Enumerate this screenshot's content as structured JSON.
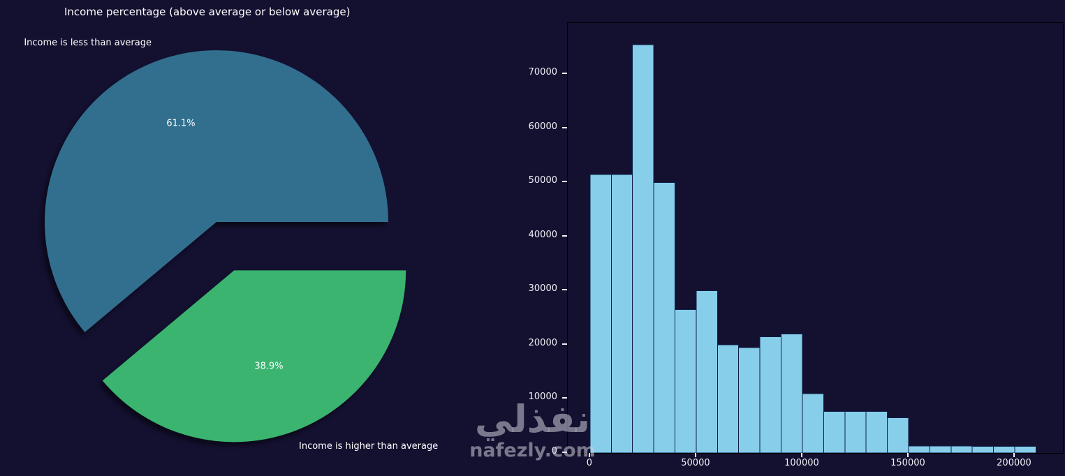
{
  "colors": {
    "background": "#141030",
    "text": "#ffffff",
    "watermark": "#cdcdd8"
  },
  "watermark": {
    "arabic": "نفذلي",
    "latin": "nafezly.com"
  },
  "pie": {
    "title": "Income percentage (above average or below average)",
    "label_less": "Income is less than average",
    "label_higher": "Income is higher than average",
    "pct_less": "61.1%",
    "pct_higher": "38.9%"
  },
  "chart_data": [
    {
      "type": "pie",
      "title": "Income percentage (above average or below average)",
      "labels": [
        "Income is less than average",
        "Income is higher than average"
      ],
      "values": [
        61.1,
        38.9
      ],
      "pct_labels": [
        "61.1%",
        "38.9%"
      ],
      "colors": [
        "#326f8e",
        "#3ab46f"
      ],
      "start_angle": 0,
      "explode": [
        0,
        0.3
      ],
      "shadow": true
    },
    {
      "type": "histogram",
      "xlabel": "",
      "ylabel": "",
      "bin_start": 0,
      "bin_width": 10000,
      "counts": [
        51500,
        51500,
        75500,
        50000,
        26500,
        30000,
        20000,
        19500,
        21500,
        22000,
        11000,
        7700,
        7700,
        7700,
        6500,
        1300,
        1300,
        1300,
        1200,
        1200,
        1200
      ],
      "xticks": [
        0,
        50000,
        100000,
        150000,
        200000
      ],
      "yticks": [
        0,
        10000,
        20000,
        30000,
        40000,
        50000,
        60000,
        70000
      ],
      "xlim": [
        -10500,
        222700
      ],
      "ylim": [
        0,
        79480
      ],
      "bar_color": "#87ceeb",
      "bar_edge_color": "#0f1f45",
      "grid": false,
      "legend": "none"
    }
  ]
}
